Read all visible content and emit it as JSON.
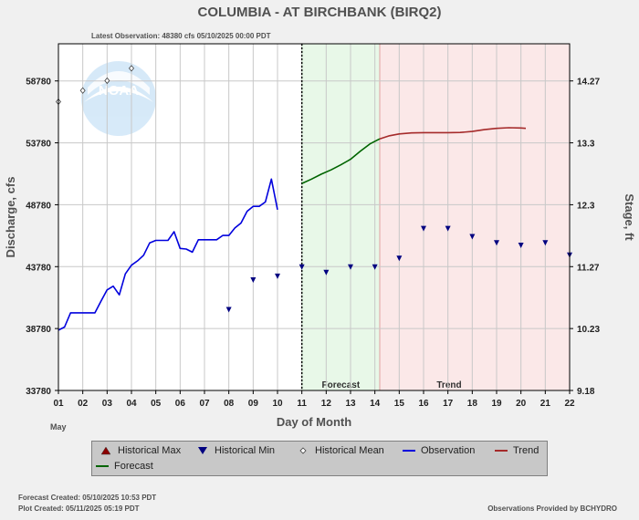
{
  "chart_data": {
    "type": "line",
    "title": "COLUMBIA - AT BIRCHBANK  (BIRQ2)",
    "subtitle": "Latest Observation: 48380 cfs 05/10/2025 00:00 PDT",
    "xlabel": "Day of Month",
    "x_month_label": "May",
    "ylabel": "Discharge, cfs",
    "y2label": "Stage, ft",
    "xlim": [
      1,
      22
    ],
    "ylim": [
      33780,
      61780
    ],
    "x_ticks": [
      "01",
      "02",
      "03",
      "04",
      "05",
      "06",
      "07",
      "08",
      "09",
      "10",
      "11",
      "12",
      "13",
      "14",
      "15",
      "16",
      "17",
      "18",
      "19",
      "20",
      "21",
      "22"
    ],
    "y_ticks": [
      33780,
      38780,
      43780,
      48780,
      53780,
      58780
    ],
    "y_tick_labels": [
      "33780",
      "38780",
      "43780",
      "48780",
      "53780",
      "58780"
    ],
    "y2_ticks": [
      {
        "at": 33780,
        "label": "9.18"
      },
      {
        "at": 38780,
        "label": "10.23"
      },
      {
        "at": 43780,
        "label": "11.27"
      },
      {
        "at": 48780,
        "label": "12.3"
      },
      {
        "at": 53780,
        "label": "13.3"
      },
      {
        "at": 58780,
        "label": "14.27"
      }
    ],
    "grid": true,
    "legend_position": "bottom",
    "current_time_x": 11.0,
    "bands": [
      {
        "name": "Forecast",
        "label": "Forecast",
        "x_start": 11.0,
        "x_end": 14.2,
        "color": "#e8f8e8"
      },
      {
        "name": "Trend",
        "label": "Trend",
        "x_start": 14.2,
        "x_end": 22.0,
        "color": "#fbe8e8"
      }
    ],
    "series": [
      {
        "name": "Observation",
        "kind": "line",
        "color": "#0000dd",
        "x": [
          1.0,
          1.25,
          1.5,
          1.75,
          2.0,
          2.25,
          2.5,
          2.75,
          3.0,
          3.25,
          3.5,
          3.75,
          4.0,
          4.25,
          4.5,
          4.75,
          5.0,
          5.25,
          5.5,
          5.75,
          6.0,
          6.25,
          6.5,
          6.75,
          7.0,
          7.25,
          7.5,
          7.75,
          8.0,
          8.25,
          8.5,
          8.75,
          9.0,
          9.25,
          9.5,
          9.75,
          10.0
        ],
        "y": [
          38650,
          38900,
          40050,
          40050,
          40050,
          40050,
          40050,
          41000,
          41900,
          42200,
          41500,
          43200,
          43900,
          44250,
          44700,
          45700,
          45900,
          45900,
          45900,
          46600,
          45250,
          45200,
          44950,
          45950,
          45950,
          45950,
          45950,
          46300,
          46300,
          46900,
          47300,
          48250,
          48650,
          48650,
          49000,
          50850,
          48380
        ]
      },
      {
        "name": "Forecast",
        "kind": "line",
        "color": "#006400",
        "x": [
          11.0,
          11.4,
          11.8,
          12.2,
          12.6,
          13.0,
          13.4,
          13.8,
          14.2
        ],
        "y": [
          50500,
          50850,
          51250,
          51600,
          52000,
          52450,
          53100,
          53700,
          54100
        ]
      },
      {
        "name": "Trend",
        "kind": "line",
        "color": "#a52a2a",
        "x": [
          14.2,
          14.6,
          15.0,
          15.5,
          16.0,
          16.5,
          17.0,
          17.5,
          18.0,
          18.5,
          19.0,
          19.5,
          20.0,
          20.2
        ],
        "y": [
          54100,
          54350,
          54500,
          54580,
          54600,
          54600,
          54600,
          54620,
          54700,
          54850,
          54950,
          55000,
          54980,
          54950
        ]
      },
      {
        "name": "Historical Min",
        "kind": "marker",
        "color": "#000080",
        "x": [
          8.0,
          9.0,
          10.0,
          11.0,
          12.0,
          13.0,
          14.0,
          15.0,
          16.0,
          17.0,
          18.0,
          19.0,
          20.0,
          21.0,
          22.0
        ],
        "y": [
          40300,
          42700,
          43000,
          43750,
          43300,
          43750,
          43750,
          44450,
          46850,
          46850,
          46200,
          45700,
          45500,
          45700,
          44700
        ]
      },
      {
        "name": "Historical Mean",
        "kind": "marker",
        "color": "#404040",
        "x": [
          1.0,
          2.0,
          3.0,
          4.0
        ],
        "y": [
          57100,
          58000,
          58800,
          59800
        ]
      },
      {
        "name": "Historical Max",
        "kind": "marker",
        "color": "#800000",
        "x": [],
        "y": []
      }
    ]
  },
  "watermark": {
    "text": "NOAA"
  },
  "legend": {
    "items": [
      {
        "label": "Historical Max",
        "symbol": "triangle-up",
        "color": "#8b0000"
      },
      {
        "label": "Historical Min",
        "symbol": "triangle-down",
        "color": "#000080"
      },
      {
        "label": "Historical Mean",
        "symbol": "diamond",
        "color": "#404040"
      },
      {
        "label": "Observation",
        "symbol": "line",
        "color": "#0000dd"
      },
      {
        "label": "Trend",
        "symbol": "line",
        "color": "#a52a2a"
      },
      {
        "label": "Forecast",
        "symbol": "line",
        "color": "#006400"
      }
    ]
  },
  "footer": {
    "forecast_created": "Forecast Created: 05/10/2025 10:53 PDT",
    "plot_created": "Plot Created: 05/11/2025 05:19 PDT",
    "provider": "Observations Provided by BCHYDRO"
  }
}
